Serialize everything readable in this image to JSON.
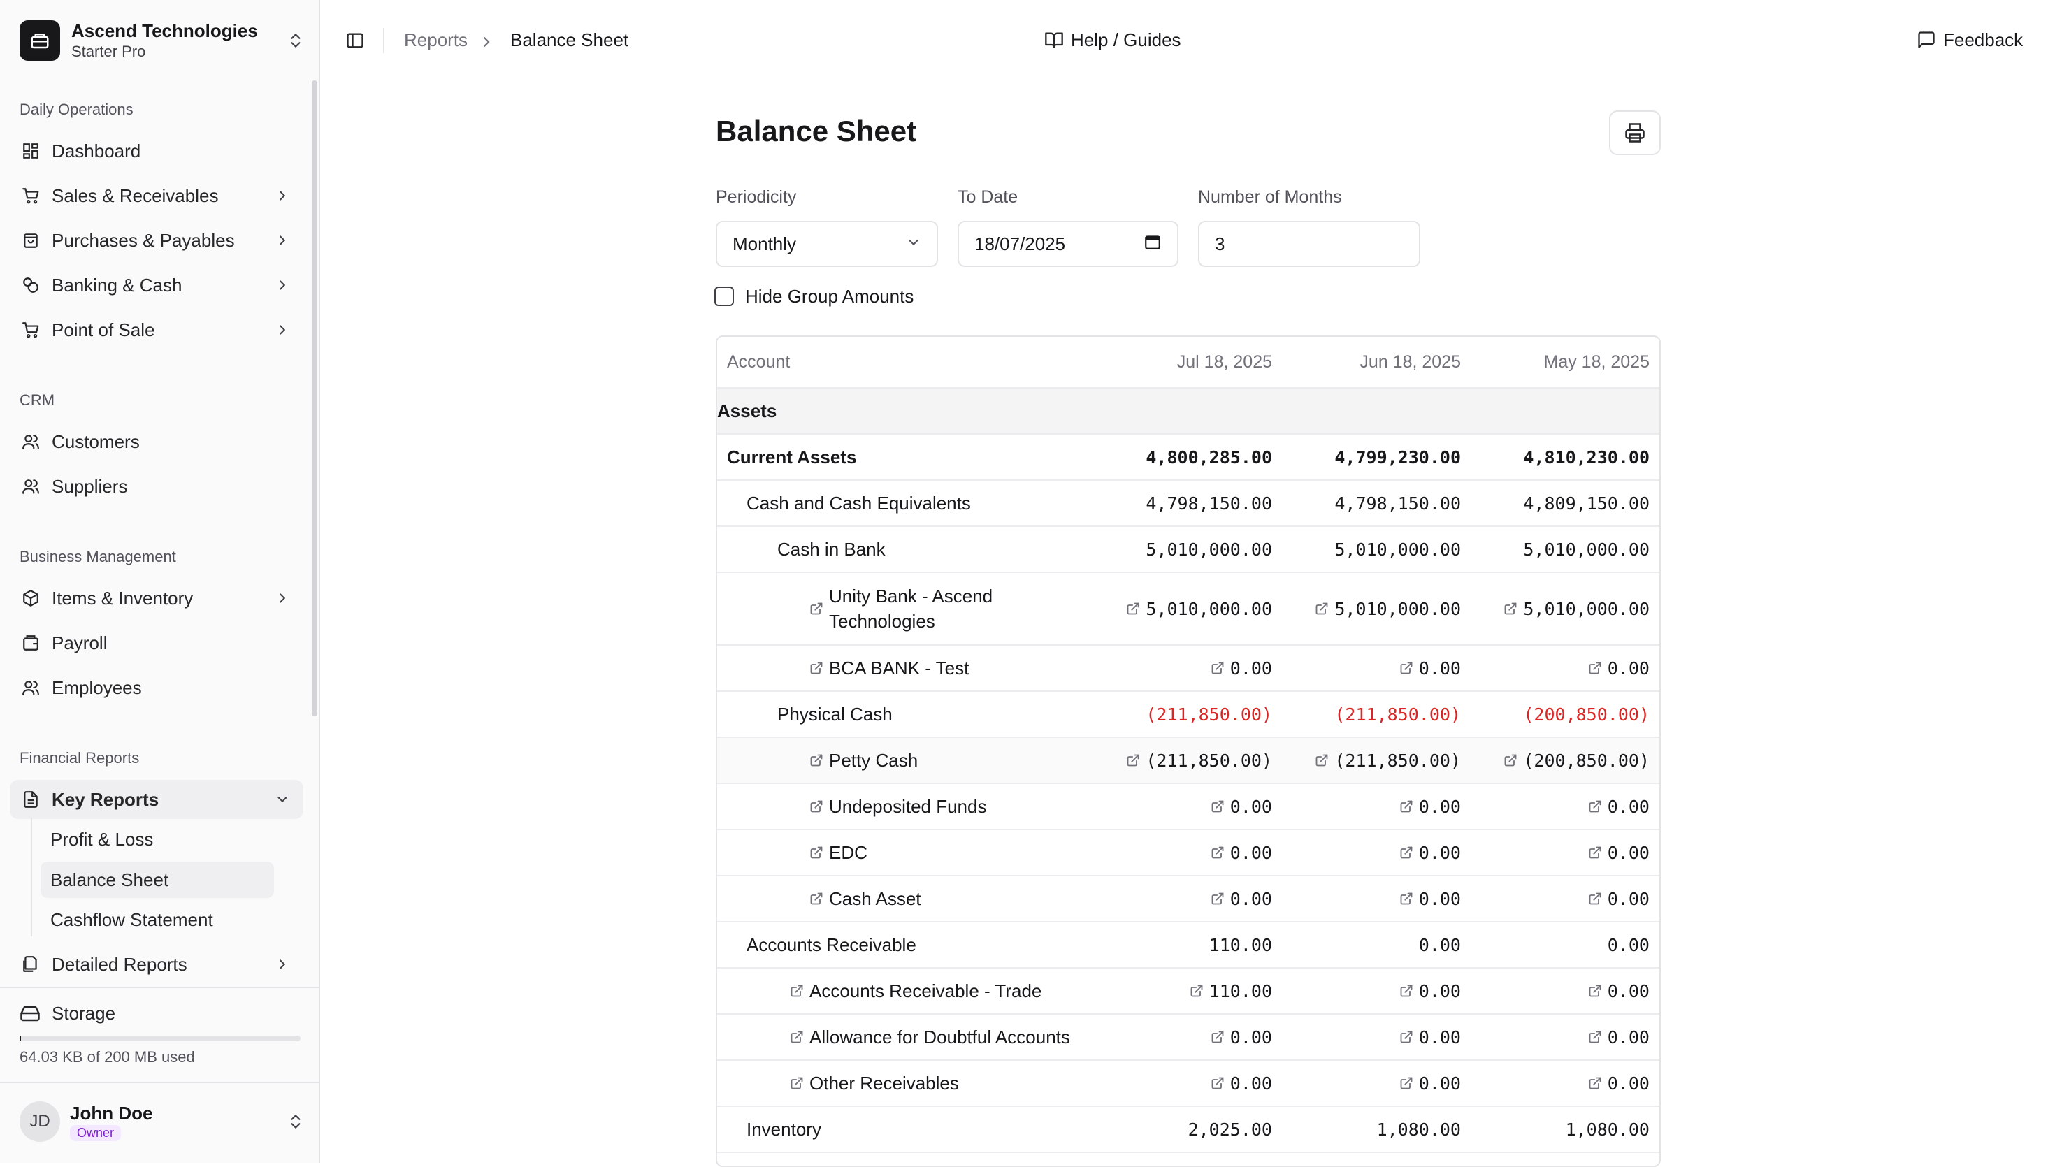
{
  "org": {
    "name": "Ascend Technologies",
    "plan": "Starter Pro"
  },
  "sidebar": {
    "groups": [
      {
        "label": "Daily Operations",
        "items": [
          {
            "label": "Dashboard",
            "icon": "dashboard-icon"
          },
          {
            "label": "Sales & Receivables",
            "icon": "cart-icon"
          },
          {
            "label": "Purchases & Payables",
            "icon": "bag-icon"
          },
          {
            "label": "Banking & Cash",
            "icon": "coins-icon"
          },
          {
            "label": "Point of Sale",
            "icon": "cart-icon"
          }
        ]
      },
      {
        "label": "CRM",
        "items": [
          {
            "label": "Customers",
            "icon": "users-icon"
          },
          {
            "label": "Suppliers",
            "icon": "users-icon"
          }
        ]
      },
      {
        "label": "Business Management",
        "items": [
          {
            "label": "Items & Inventory",
            "icon": "package-icon"
          },
          {
            "label": "Payroll",
            "icon": "wallet-icon"
          },
          {
            "label": "Employees",
            "icon": "users-icon"
          }
        ]
      },
      {
        "label": "Financial Reports",
        "items": [
          {
            "label": "Key Reports",
            "icon": "file-text-icon",
            "expanded": true,
            "children": [
              "Profit & Loss",
              "Balance Sheet",
              "Cashflow Statement"
            ],
            "active_child": "Balance Sheet"
          },
          {
            "label": "Detailed Reports",
            "icon": "files-icon"
          }
        ]
      }
    ],
    "storage": {
      "label": "Storage",
      "usage_text": "64.03 KB of 200 MB used",
      "used_fraction": 0.0003
    },
    "user": {
      "initials": "JD",
      "name": "John Doe",
      "role": "Owner"
    }
  },
  "topbar": {
    "breadcrumb": [
      "Reports",
      "Balance Sheet"
    ],
    "help_label": "Help / Guides",
    "feedback_label": "Feedback"
  },
  "page": {
    "title": "Balance Sheet",
    "filters": {
      "periodicity": {
        "label": "Periodicity",
        "value": "Monthly"
      },
      "to_date": {
        "label": "To Date",
        "value": "18/07/2025"
      },
      "months": {
        "label": "Number of Months",
        "value": "3"
      },
      "hide_group_amounts": {
        "label": "Hide Group Amounts",
        "checked": false
      }
    },
    "table": {
      "headers": [
        "Account",
        "Jul 18, 2025",
        "Jun 18, 2025",
        "May 18, 2025"
      ],
      "rows": [
        {
          "kind": "section",
          "account": "Assets",
          "values": [
            "",
            "",
            ""
          ]
        },
        {
          "kind": "group",
          "level": 0,
          "account": "Current Assets",
          "values": [
            "4,800,285.00",
            "4,799,230.00",
            "4,810,230.00"
          ]
        },
        {
          "kind": "group",
          "level": 1,
          "account": "Cash and Cash Equivalents",
          "values": [
            "4,798,150.00",
            "4,798,150.00",
            "4,809,150.00"
          ]
        },
        {
          "kind": "group",
          "level": 2,
          "account": "Cash in Bank",
          "values": [
            "5,010,000.00",
            "5,010,000.00",
            "5,010,000.00"
          ]
        },
        {
          "kind": "account",
          "level": 3,
          "account": "Unity Bank - Ascend Technologies",
          "account_line1": "Unity Bank - Ascend",
          "account_line2": "Technologies",
          "values": [
            "5,010,000.00",
            "5,010,000.00",
            "5,010,000.00"
          ]
        },
        {
          "kind": "account",
          "level": 3,
          "account": "BCA BANK - Test",
          "values": [
            "0.00",
            "0.00",
            "0.00"
          ]
        },
        {
          "kind": "group",
          "level": 2,
          "account": "Physical Cash",
          "values": [
            "(211,850.00)",
            "(211,850.00)",
            "(200,850.00)"
          ]
        },
        {
          "kind": "account",
          "level": 3,
          "account": "Petty Cash",
          "values": [
            "(211,850.00)",
            "(211,850.00)",
            "(200,850.00)"
          ]
        },
        {
          "kind": "account",
          "level": 3,
          "account": "Undeposited Funds",
          "values": [
            "0.00",
            "0.00",
            "0.00"
          ]
        },
        {
          "kind": "account",
          "level": 3,
          "account": "EDC",
          "values": [
            "0.00",
            "0.00",
            "0.00"
          ]
        },
        {
          "kind": "account",
          "level": 3,
          "account": "Cash Asset",
          "values": [
            "0.00",
            "0.00",
            "0.00"
          ]
        },
        {
          "kind": "group",
          "level": 1,
          "account": "Accounts Receivable",
          "values": [
            "110.00",
            "0.00",
            "0.00"
          ]
        },
        {
          "kind": "account",
          "level": 2,
          "account": "Accounts Receivable - Trade",
          "values": [
            "110.00",
            "0.00",
            "0.00"
          ]
        },
        {
          "kind": "account",
          "level": 2,
          "account": "Allowance for Doubtful Accounts",
          "values": [
            "0.00",
            "0.00",
            "0.00"
          ]
        },
        {
          "kind": "account",
          "level": 2,
          "account": "Other Receivables",
          "values": [
            "0.00",
            "0.00",
            "0.00"
          ]
        },
        {
          "kind": "group",
          "level": 1,
          "account": "Inventory",
          "values": [
            "2,025.00",
            "1,080.00",
            "1,080.00"
          ]
        }
      ]
    }
  },
  "colors": {
    "negative": "#dc2626",
    "active_nav_bg": "#efeff1",
    "role_badge": "#7e22ce"
  }
}
